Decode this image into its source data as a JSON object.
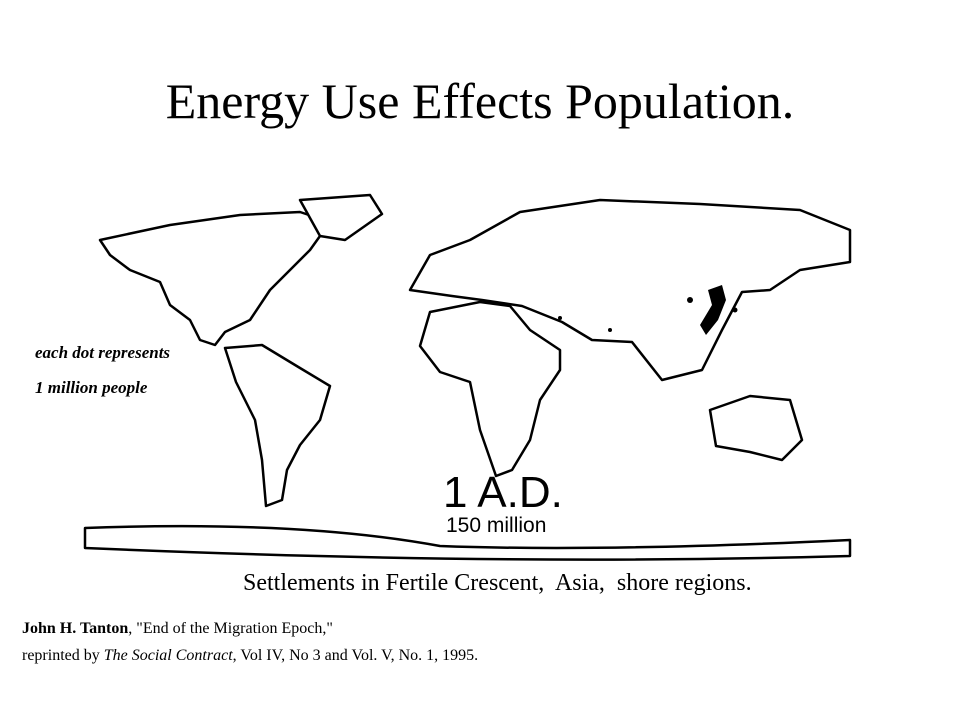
{
  "slide": {
    "title": "Energy Use Effects Population.",
    "map": {
      "legend": [
        "each dot represents",
        "1 million people"
      ],
      "era": "1 A.D.",
      "population": "150 million"
    },
    "caption": "Settlements in Fertile Crescent,  Asia,  shore regions.",
    "citation": {
      "author": "John H. Tanton",
      "article": ", \"End of the Migration Epoch,\"",
      "reprint_prefix": "reprinted by ",
      "journal": "The Social Contract",
      "reprint_suffix": ", Vol IV, No 3 and Vol. V, No. 1, 1995."
    }
  }
}
